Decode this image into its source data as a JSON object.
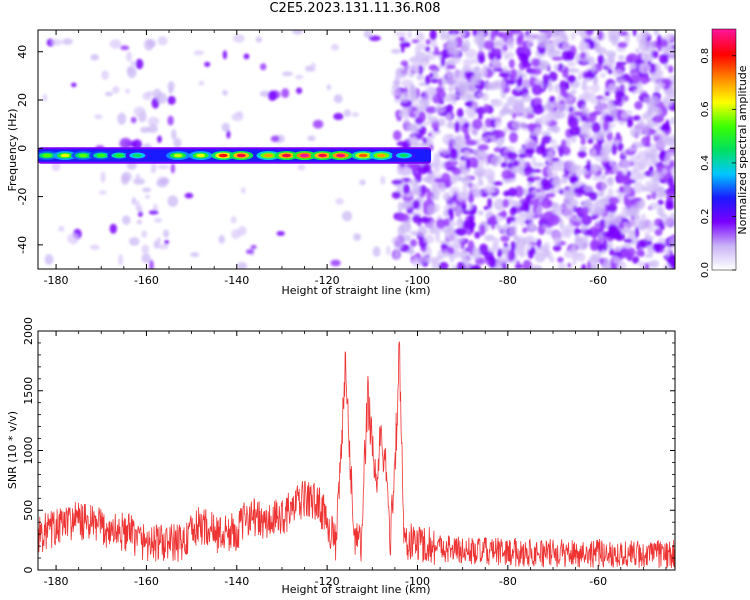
{
  "title": "C2E5.2023.131.11.36.R08",
  "colorbar": {
    "label": "Normalized spectral amplitude",
    "ticks": [
      "0.0",
      "0.2",
      "0.4",
      "0.6",
      "0.8"
    ],
    "range": [
      0,
      0.9
    ],
    "colors": [
      "#ffffff",
      "#c9b3f5",
      "#7a00ff",
      "#1a1aff",
      "#00c8ff",
      "#00e060",
      "#3cff00",
      "#ffff00",
      "#ff8800",
      "#ff0000",
      "#ff1493"
    ]
  },
  "chart_data": [
    {
      "type": "heatmap",
      "xlabel": "Height of straight line (km)",
      "ylabel": "Frequency (Hz)",
      "xlim": [
        -184,
        -43
      ],
      "ylim": [
        -50,
        49
      ],
      "xticks": [
        "-180",
        "-160",
        "-140",
        "-120",
        "-100",
        "-80",
        "-60"
      ],
      "yticks": [
        "40",
        "20",
        "0",
        "-20",
        "-40"
      ],
      "xtick_values": [
        -180,
        -160,
        -140,
        -120,
        -100,
        -80,
        -60
      ],
      "ytick_values": [
        40,
        20,
        0,
        -20,
        -40
      ],
      "band": {
        "frequency_center": -3,
        "frequency_halfwidth": 3,
        "x_range": [
          -184,
          -97
        ],
        "hotspots": [
          {
            "x": -182,
            "v": 0.55
          },
          {
            "x": -178,
            "v": 0.62
          },
          {
            "x": -174,
            "v": 0.55
          },
          {
            "x": -170,
            "v": 0.52
          },
          {
            "x": -166,
            "v": 0.5
          },
          {
            "x": -162,
            "v": 0.45
          },
          {
            "x": -153,
            "v": 0.6
          },
          {
            "x": -148,
            "v": 0.62
          },
          {
            "x": -143,
            "v": 0.8
          },
          {
            "x": -139,
            "v": 0.85
          },
          {
            "x": -133,
            "v": 0.7
          },
          {
            "x": -129,
            "v": 0.85
          },
          {
            "x": -125,
            "v": 0.9
          },
          {
            "x": -121,
            "v": 0.85
          },
          {
            "x": -117,
            "v": 0.88
          },
          {
            "x": -112,
            "v": 0.75
          },
          {
            "x": -108,
            "v": 0.7
          },
          {
            "x": -103,
            "v": 0.45
          }
        ]
      },
      "noise_regions": [
        {
          "x_range": [
            -105,
            -43
          ],
          "density": "high"
        },
        {
          "x_range": [
            -166,
            -154
          ],
          "density": "medium"
        },
        {
          "x_range": [
            -184,
            -166
          ],
          "density": "low"
        },
        {
          "x_range": [
            -154,
            -105
          ],
          "density": "low"
        }
      ]
    },
    {
      "type": "line",
      "xlabel": "Height of straight line (km)",
      "ylabel": "SNR (10 * v/v)",
      "xlim": [
        -184,
        -43
      ],
      "ylim": [
        0,
        2000
      ],
      "xticks": [
        "-180",
        "-160",
        "-140",
        "-120",
        "-100",
        "-80",
        "-60"
      ],
      "yticks": [
        "0",
        "500",
        "1000",
        "1500",
        "2000"
      ],
      "xtick_values": [
        -180,
        -160,
        -140,
        -120,
        -100,
        -80,
        -60
      ],
      "ytick_values": [
        0,
        500,
        1000,
        1500,
        2000
      ],
      "color": "#ee3333",
      "series": [
        {
          "x": [
            -184,
            -180,
            -176,
            -172,
            -168,
            -164,
            -160,
            -156,
            -152,
            -148,
            -144,
            -140,
            -137,
            -134,
            -131,
            -128,
            -125,
            -122,
            -120,
            -118,
            -116,
            -114,
            -112.5,
            -111,
            -110,
            -109,
            -108,
            -107,
            -106,
            -105,
            -104,
            -103,
            -102,
            -100,
            -96,
            -90,
            -80,
            -70,
            -60,
            -50,
            -43
          ],
          "values": [
            300,
            350,
            420,
            380,
            330,
            310,
            230,
            220,
            230,
            380,
            300,
            320,
            480,
            380,
            430,
            500,
            600,
            560,
            420,
            200,
            1650,
            300,
            200,
            1500,
            1050,
            700,
            1150,
            850,
            250,
            900,
            1800,
            260,
            230,
            230,
            200,
            160,
            150,
            140,
            140,
            130,
            130
          ],
          "noise_amplitude": 150
        }
      ]
    }
  ]
}
